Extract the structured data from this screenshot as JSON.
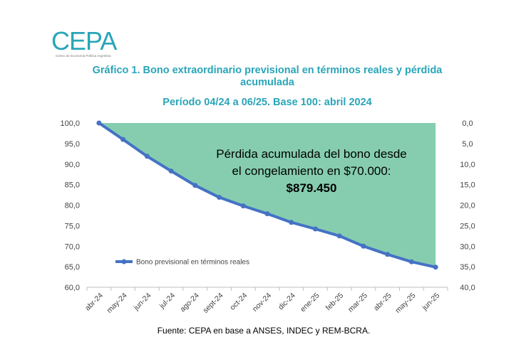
{
  "logo": {
    "text": "CEPA",
    "subtitle": "Centro de Economía Política Argentina"
  },
  "title": "Gráfico 1. Bono extraordinario previsional en términos reales y pérdida acumulada",
  "subtitle": "Período 04/24 a 06/25. Base 100: abril 2024",
  "source": "Fuente: CEPA en base a ANSES, INDEC y REM-BCRA.",
  "annotation": {
    "line1": "Pérdida acumulada del bono desde",
    "line2": "el congelamiento en $70.000:",
    "line3": "$879.450"
  },
  "colors": {
    "line": "#4472c4",
    "area": "#86cdb0",
    "title": "#2aa5b8"
  },
  "chart_data": {
    "type": "line",
    "categories": [
      "abr-24",
      "may-24",
      "jun-24",
      "jul-24",
      "ago-24",
      "sept-24",
      "oct-24",
      "nov-24",
      "dic-24",
      "ene-25",
      "feb-25",
      "mar-25",
      "abr-25",
      "may-25",
      "jun-25"
    ],
    "series": [
      {
        "name": "Bono previsional en términos reales",
        "values": [
          100.0,
          96.0,
          91.9,
          88.3,
          84.8,
          81.9,
          79.8,
          77.9,
          75.8,
          74.2,
          72.5,
          70.0,
          68.0,
          66.2,
          64.9
        ]
      }
    ],
    "fill_area": "between 100 and series",
    "ylim": [
      60,
      100
    ],
    "yticks": [
      "100,0",
      "95,0",
      "90,0",
      "85,0",
      "80,0",
      "75,0",
      "70,0",
      "65,0",
      "60,0"
    ],
    "ylim_right": [
      0,
      40
    ],
    "yticks_right": [
      "0,0",
      "5,0",
      "10,0",
      "15,0",
      "20,0",
      "25,0",
      "30,0",
      "35,0",
      "40,0"
    ],
    "legend_position": "bottom-left inside",
    "grid": false
  }
}
